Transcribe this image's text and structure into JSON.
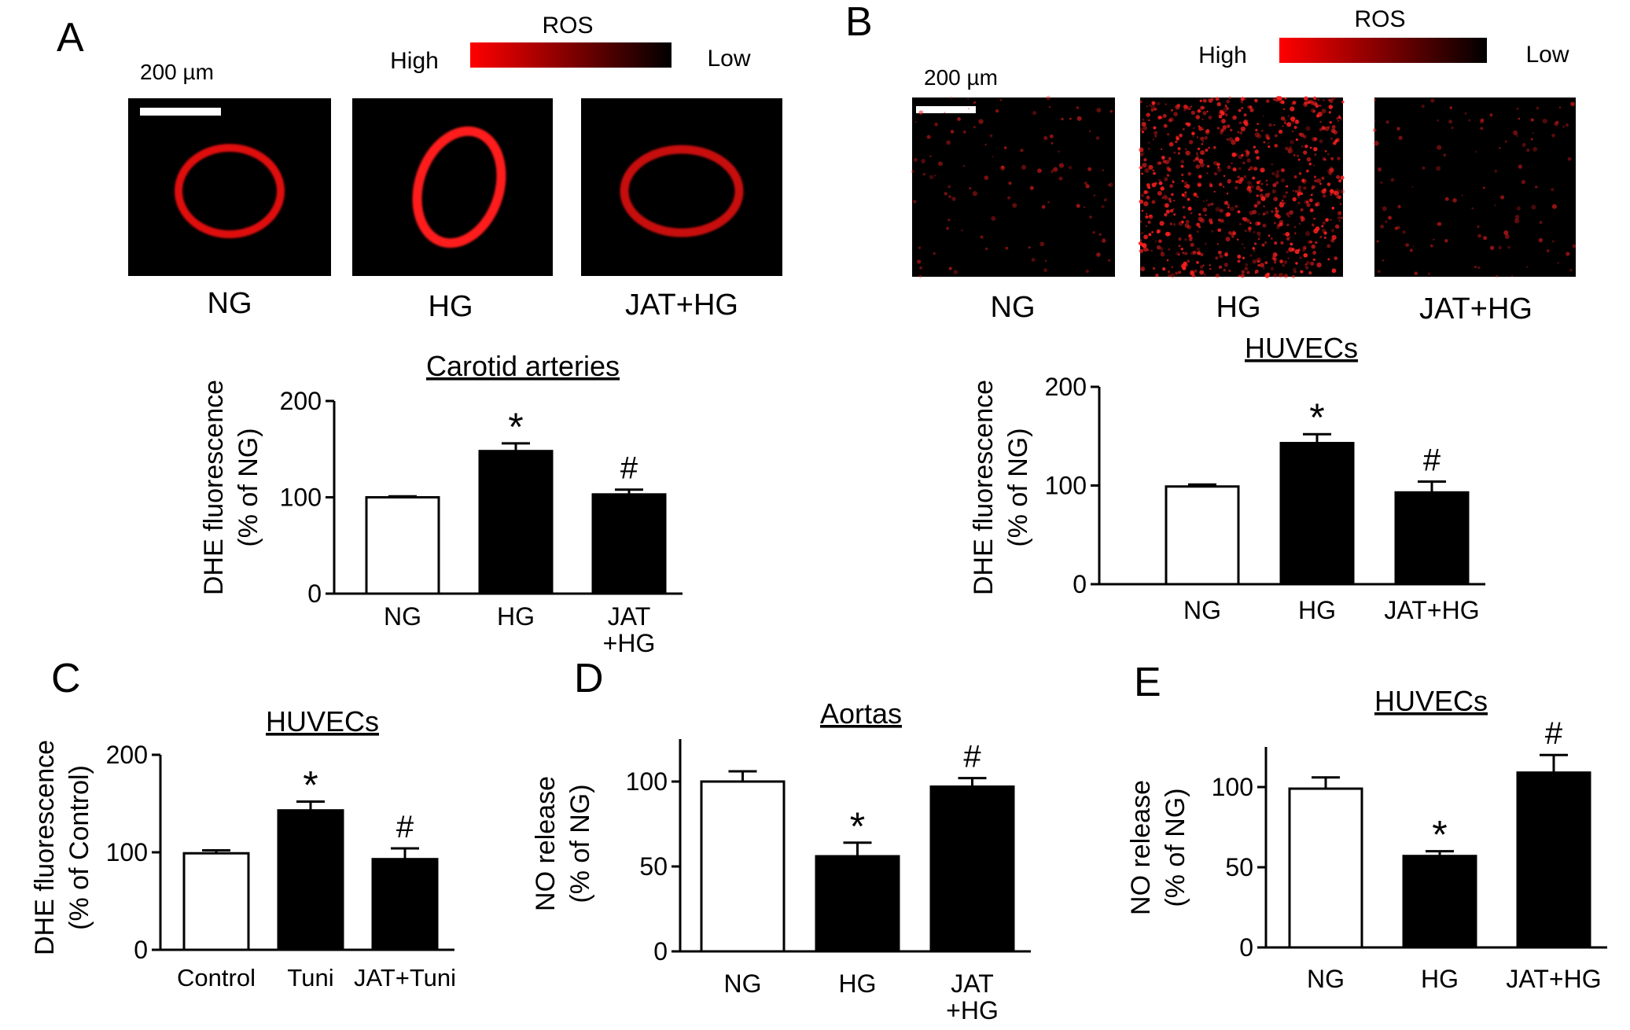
{
  "panels": {
    "A": {
      "letter": "A",
      "legend": {
        "title": "ROS",
        "high": "High",
        "low": "Low",
        "color_high": "#ff0000",
        "color_low": "#000000"
      },
      "scale_bar": "200 µm",
      "images": [
        {
          "label": "NG"
        },
        {
          "label": "HG"
        },
        {
          "label": "JAT+HG"
        }
      ]
    },
    "B": {
      "letter": "B",
      "legend": {
        "title": "ROS",
        "high": "High",
        "low": "Low",
        "color_high": "#ff0000",
        "color_low": "#000000"
      },
      "scale_bar": "200 µm",
      "images": [
        {
          "label": "NG"
        },
        {
          "label": "HG"
        },
        {
          "label": "JAT+HG"
        }
      ]
    },
    "C": {
      "letter": "C"
    },
    "D": {
      "letter": "D"
    },
    "E": {
      "letter": "E"
    }
  },
  "chart_data": [
    {
      "id": "A",
      "type": "bar",
      "title": "Carotid arteries",
      "ylabel_lines": [
        "DHE fluorescence",
        "(% of NG)"
      ],
      "categories": [
        [
          "NG"
        ],
        [
          "HG"
        ],
        [
          "JAT",
          "+HG"
        ]
      ],
      "values": [
        100,
        148,
        103
      ],
      "errors": [
        1,
        8,
        5
      ],
      "fills": [
        "#ffffff",
        "#000000",
        "#000000"
      ],
      "markers": [
        "",
        "*",
        "#"
      ],
      "ylim": [
        0,
        200
      ],
      "yticks": [
        0,
        100,
        200
      ],
      "grid": false
    },
    {
      "id": "B",
      "type": "bar",
      "title": "HUVECs",
      "ylabel_lines": [
        "DHE fluorescence",
        "(% of NG)"
      ],
      "categories": [
        [
          "NG"
        ],
        [
          "HG"
        ],
        [
          "JAT+HG"
        ]
      ],
      "values": [
        99,
        143,
        93
      ],
      "errors": [
        2,
        9,
        11
      ],
      "fills": [
        "#ffffff",
        "#000000",
        "#000000"
      ],
      "markers": [
        "",
        "*",
        "#"
      ],
      "ylim": [
        0,
        200
      ],
      "yticks": [
        0,
        100,
        200
      ],
      "grid": false
    },
    {
      "id": "C",
      "type": "bar",
      "title": "HUVECs",
      "ylabel_lines": [
        "DHE fluorescence",
        "(% of Control)"
      ],
      "categories": [
        [
          "Control"
        ],
        [
          "Tuni"
        ],
        [
          "JAT+Tuni"
        ]
      ],
      "values": [
        99,
        143,
        93
      ],
      "errors": [
        3,
        9,
        11
      ],
      "fills": [
        "#ffffff",
        "#000000",
        "#000000"
      ],
      "markers": [
        "",
        "*",
        "#"
      ],
      "ylim": [
        0,
        200
      ],
      "yticks": [
        0,
        100,
        200
      ],
      "grid": false
    },
    {
      "id": "D",
      "type": "bar",
      "title": "Aortas",
      "ylabel_lines": [
        "NO release",
        "(% of NG)"
      ],
      "categories": [
        [
          "NG"
        ],
        [
          "HG"
        ],
        [
          "JAT",
          "+HG"
        ]
      ],
      "values": [
        100,
        56,
        97
      ],
      "errors": [
        6,
        8,
        5
      ],
      "fills": [
        "#ffffff",
        "#000000",
        "#000000"
      ],
      "markers": [
        "",
        "*",
        "#"
      ],
      "ylim": [
        0,
        125
      ],
      "yticks": [
        0,
        50,
        100
      ],
      "grid": false
    },
    {
      "id": "E",
      "type": "bar",
      "title": "HUVECs",
      "ylabel_lines": [
        "NO release",
        "(% of NG)"
      ],
      "categories": [
        [
          "NG"
        ],
        [
          "HG"
        ],
        [
          "JAT+HG"
        ]
      ],
      "values": [
        99,
        57,
        109
      ],
      "errors": [
        7,
        3,
        11
      ],
      "fills": [
        "#ffffff",
        "#000000",
        "#000000"
      ],
      "markers": [
        "",
        "*",
        "#"
      ],
      "ylim": [
        0,
        125
      ],
      "yticks": [
        0,
        50,
        100
      ],
      "grid": false
    }
  ]
}
